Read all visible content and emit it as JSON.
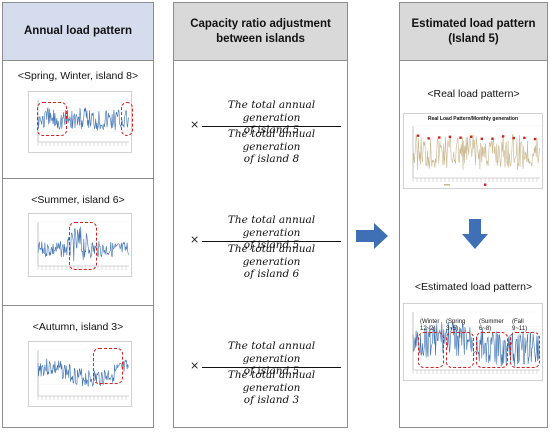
{
  "columns": {
    "left": {
      "header": "Annual load pattern",
      "rows": [
        {
          "caption": "<Spring, Winter, island 8>"
        },
        {
          "caption": "<Summer, island 6>"
        },
        {
          "caption": "<Autumn, island 3>"
        }
      ]
    },
    "middle": {
      "header_line1": "Capacity ratio adjustment",
      "header_line2": "between islands",
      "times": "×",
      "fractions": [
        {
          "num1": "The total annual generation",
          "num2": "of island 5",
          "den1": "The total annual generation",
          "den2": "of island 8"
        },
        {
          "num1": "The total annual generation",
          "num2": "of island 5",
          "den1": "The total annual generation",
          "den2": "of island 6"
        },
        {
          "num1": "The total annual generation",
          "num2": "of island 5",
          "den1": "The total annual generation",
          "den2": "of island 3"
        }
      ]
    },
    "right": {
      "header_line1": "Estimated load pattern",
      "header_line2": "(Island 5)",
      "real_caption": "<Real load pattern>",
      "real_chart_title": "Real Load Pattern/Monthly generation",
      "estimated_caption": "<Estimated load pattern>",
      "seasons": [
        {
          "line1": "(Winter",
          "line2": "12~2)"
        },
        {
          "line1": "(Spring",
          "line2": "3~5)"
        },
        {
          "line1": "(Summer",
          "line2": "6~8)"
        },
        {
          "line1": "(Fall",
          "line2": "9~11)"
        }
      ]
    }
  },
  "colors": {
    "left_header_bg": "#d5dcee",
    "header_bg": "#d9d9d9",
    "arrow": "#3f6fb5",
    "dashed_box": "#d81e1e",
    "series_blue": "#3a6fb0",
    "series_tan": "#c9b78e",
    "marker_red": "#d81e1e"
  }
}
